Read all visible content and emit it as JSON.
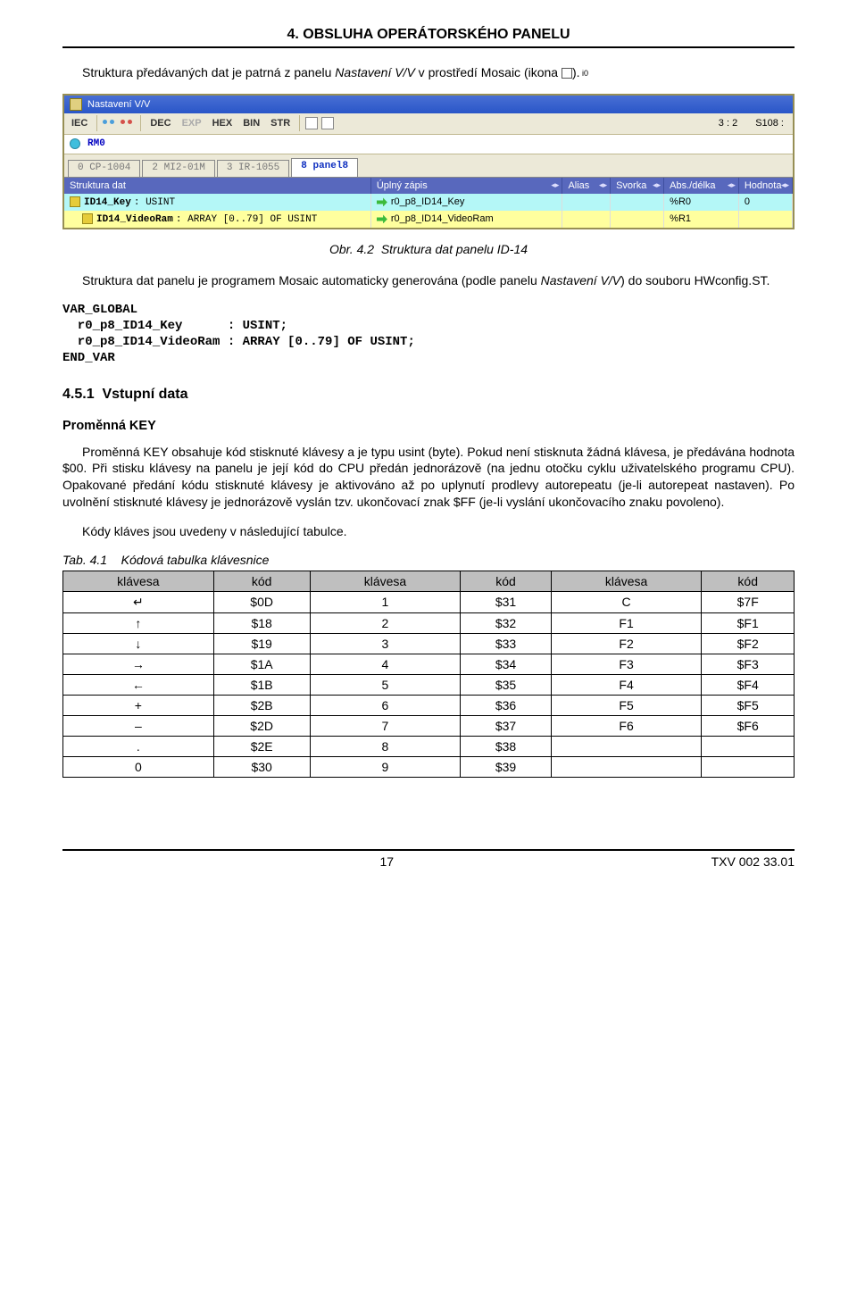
{
  "header": {
    "title": "4. OBSLUHA OPERÁTORSKÉHO PANELU"
  },
  "intro": {
    "text_before": "Struktura předávaných dat je patrná z panelu ",
    "italic1": "Nastavení V/V",
    "text_mid": " v prostředí Mosaic (ikona ",
    "text_after": ")."
  },
  "screenshot": {
    "titlebar": "Nastavení V/V",
    "toolbar": {
      "iec": "IEC",
      "dec": "DEC",
      "exp": "EXP",
      "hex": "HEX",
      "bin": "BIN",
      "str": "STR",
      "ratio": "3 : 2",
      "sig": "S108 :"
    },
    "rm_label": "RM0",
    "tabs": [
      "0 CP-1004",
      "2 MI2-01M",
      "3 IR-1055",
      "8 panel8"
    ],
    "active_tab_index": 3,
    "columns": [
      "Struktura dat",
      "Úplný zápis",
      "Alias",
      "Svorka",
      "Abs./délka",
      "Hodnota"
    ],
    "col_widths": [
      "320px",
      "200px",
      "50px",
      "56px",
      "78px",
      "56px"
    ],
    "rows": [
      {
        "style": "cyan",
        "struct": "ID14_Key : USINT",
        "zapis": "r0_p8_ID14_Key",
        "alias": "",
        "svorka": "",
        "abs": "%R0",
        "hod": "0"
      },
      {
        "style": "yellow",
        "struct": "ID14_VideoRam : ARRAY [0..79] OF USINT",
        "zapis": "r0_p8_ID14_VideoRam",
        "alias": "",
        "svorka": "",
        "abs": "%R1",
        "hod": ""
      }
    ]
  },
  "fig_caption": {
    "prefix": "Obr. 4.2",
    "text": "Struktura dat panelu ID-14"
  },
  "para2": {
    "text_before": "Struktura dat panelu je programem Mosaic automaticky generována (podle panelu ",
    "italic": "Nastavení V/V",
    "text_after": ") do souboru HWconfig.ST."
  },
  "code": "VAR_GLOBAL\n  r0_p8_ID14_Key      : USINT;\n  r0_p8_ID14_VideoRam : ARRAY [0..79] OF USINT;\nEND_VAR",
  "subsection": {
    "num": "4.5.1",
    "title": "Vstupní data"
  },
  "var_heading": "Proměnná KEY",
  "body": {
    "p1a": "Proměnná KEY obsahuje kód stisknuté klávesy a je typu usint (byte). Pokud není stisknuta žádná klávesa, je předávána hodnota $00. Při stisku klávesy na panelu je její kód do CPU předán ",
    "p1_adv": "jednorázově",
    "p1b": " (na jednu otočku cyklu uživatelského programu CPU). Opakované předání kódu stisknuté klávesy je aktivováno až po uplynutí prodlevy autorepeatu (je-li autorepeat nastaven).  Po uvolnění stisknuté klávesy je jednorázově vyslán tzv. ukončovací znak $FF (je-li vyslání ukončovacího znaku povoleno).",
    "p2": "Kódy kláves jsou uvedeny v následující tabulce."
  },
  "table_caption": {
    "prefix": "Tab. 4.1",
    "text": "Kódová tabulka klávesnice"
  },
  "key_table": {
    "headers": [
      "klávesa",
      "kód",
      "klávesa",
      "kód",
      "klávesa",
      "kód"
    ],
    "header_bg": "#bfbfbf",
    "rows": [
      [
        "↵",
        "$0D",
        "1",
        "$31",
        "C",
        "$7F"
      ],
      [
        "↑",
        "$18",
        "2",
        "$32",
        "F1",
        "$F1"
      ],
      [
        "↓",
        "$19",
        "3",
        "$33",
        "F2",
        "$F2"
      ],
      [
        "→",
        "$1A",
        "4",
        "$34",
        "F3",
        "$F3"
      ],
      [
        "←",
        "$1B",
        "5",
        "$35",
        "F4",
        "$F4"
      ],
      [
        "+",
        "$2B",
        "6",
        "$36",
        "F5",
        "$F5"
      ],
      [
        "–",
        "$2D",
        "7",
        "$37",
        "F6",
        "$F6"
      ],
      [
        ".",
        "$2E",
        "8",
        "$38",
        "",
        ""
      ],
      [
        "0",
        "$30",
        "9",
        "$39",
        "",
        ""
      ]
    ]
  },
  "footer": {
    "page": "17",
    "doc": "TXV  002 33.01"
  }
}
